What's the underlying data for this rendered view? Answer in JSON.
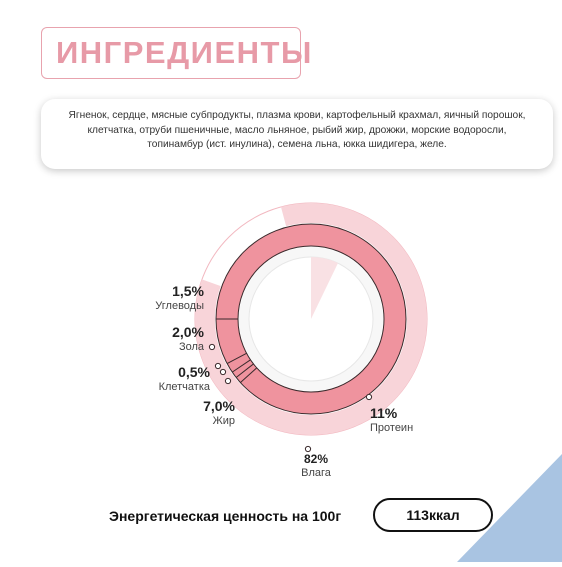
{
  "title": "ИНГРЕДИЕНТЫ",
  "ingredients_text": "Ягненок, сердце, мясные субпродукты, плазма крови, картофельный крахмал, яичный порошок, клетчатка, отруби пшеничные,  масло льняное, рыбий жир, дрожжи, морские водоросли, топинамбур (ист. инулина), семена льна, юкка шидигера, желе.",
  "composition": [
    {
      "label": "Углеводы",
      "percent_text": "1,5%",
      "value": 1.5
    },
    {
      "label": "Зола",
      "percent_text": "2,0%",
      "value": 2.0
    },
    {
      "label": "Клетчатка",
      "percent_text": "0,5%",
      "value": 0.5
    },
    {
      "label": "Жир",
      "percent_text": "7,0%",
      "value": 7.0
    },
    {
      "label": "Протеин",
      "percent_text": "11%",
      "value": 11
    },
    {
      "label": "Влага",
      "percent_text": "82%",
      "value": 82
    }
  ],
  "energy": {
    "label": "Энергетическая ценность на 100г",
    "value": "113ккал"
  },
  "colors": {
    "title": "#e79aa7",
    "outer_ring": "#f7d3d8",
    "inner_ring": "#ef939e",
    "corner": "#a9c4e2"
  }
}
